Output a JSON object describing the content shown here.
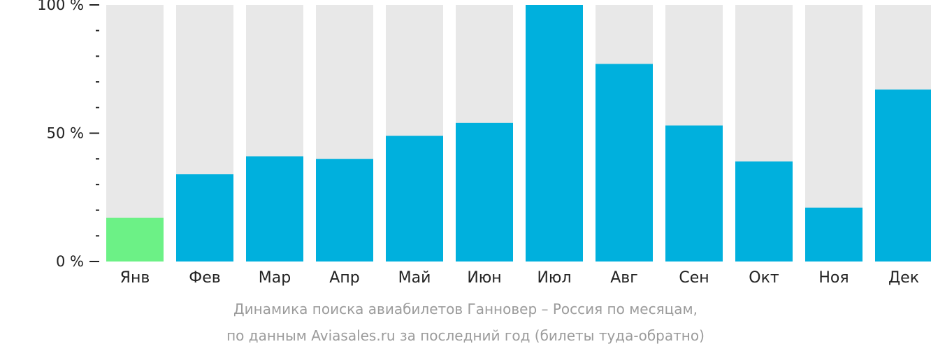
{
  "chart_data": {
    "type": "bar",
    "categories": [
      "Янв",
      "Фев",
      "Мар",
      "Апр",
      "Май",
      "Июн",
      "Июл",
      "Авг",
      "Сен",
      "Окт",
      "Ноя",
      "Дек"
    ],
    "values": [
      17,
      34,
      41,
      40,
      49,
      54,
      100,
      77,
      53,
      39,
      21,
      67
    ],
    "ylim": [
      0,
      100
    ],
    "y_ticks": [
      "0 %",
      "50 %",
      "100 %"
    ],
    "highlight_index": 0,
    "colors": {
      "bar": "#00b0dd",
      "highlight": "#6cf186",
      "background_bar": "#e8e8e8",
      "axis": "#222222",
      "caption": "#9b9b9b"
    },
    "title": "Динамика поиска авиабилетов Ганновер – Россия по месяцам,",
    "subtitle": "по данным Aviasales.ru за последний год (билеты туда-обратно)"
  }
}
